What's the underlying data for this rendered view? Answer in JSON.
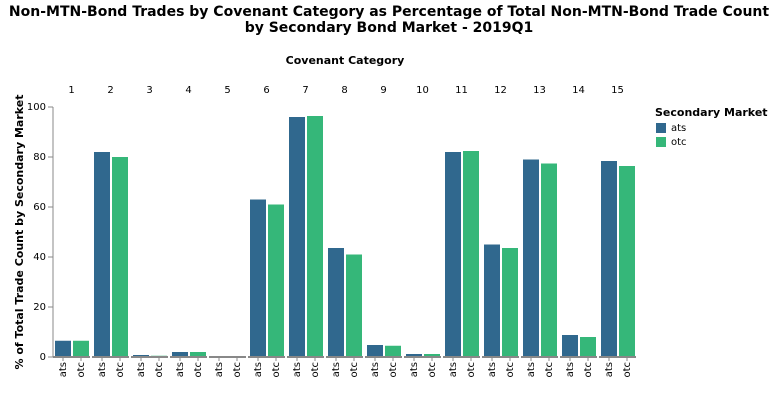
{
  "chart_data": {
    "type": "bar",
    "title": [
      "Non-MTN-Bond Trades by Covenant Category as Percentage of Total Non-MTN-Bond Trade Count",
      "by Secondary Bond Market - 2019Q1"
    ],
    "column_title": "Covenant Category",
    "y_label": "% of Total Trade Count by Secondary Market",
    "legend_title": "Secondary Market",
    "categories": [
      "1",
      "2",
      "3",
      "4",
      "5",
      "6",
      "7",
      "8",
      "9",
      "10",
      "11",
      "12",
      "13",
      "14",
      "15"
    ],
    "series": [
      {
        "name": "ats",
        "color": "#30688e",
        "values": [
          6.5,
          82,
          0.8,
          2,
          0.2,
          63,
          96,
          43.6,
          4.8,
          1.2,
          82,
          45,
          79,
          8.8,
          78.4
        ]
      },
      {
        "name": "otc",
        "color": "#35b779",
        "values": [
          6.5,
          80,
          0.5,
          2,
          0.2,
          61,
          96.4,
          41,
          4.5,
          1.2,
          82.4,
          43.6,
          77.4,
          8,
          76.4
        ]
      }
    ],
    "ylim": [
      0,
      100
    ],
    "yticks": [
      0,
      20,
      40,
      60,
      80,
      100
    ],
    "grid": false,
    "legend": "right"
  }
}
